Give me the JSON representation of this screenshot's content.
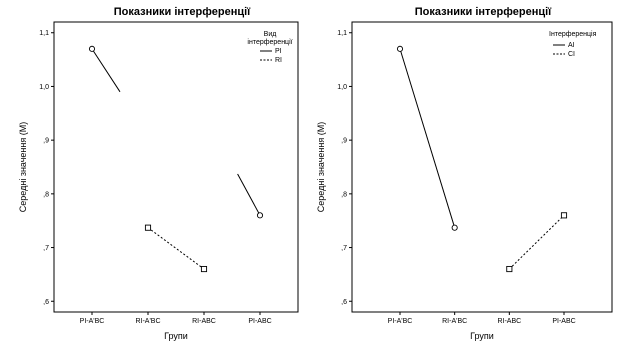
{
  "chart_data": [
    {
      "type": "line",
      "title": "Показники інтерференції",
      "xlabel": "Групи",
      "ylabel": "Середні значення (М)",
      "categories": [
        "PI-A'BC",
        "RI-A'BC",
        "RI-ABC",
        "PI-ABC"
      ],
      "ylim": [
        0.58,
        1.12
      ],
      "yticks": [
        ",6",
        ",7",
        ",8",
        ",9",
        "1,0",
        "1,1"
      ],
      "ytick_values": [
        0.6,
        0.7,
        0.8,
        0.9,
        1.0,
        1.1
      ],
      "legend_title": "Вид інтерференції",
      "series": [
        {
          "name": "PI",
          "style": "solid",
          "marker": "circle",
          "segments": [
            {
              "points": [
                [
                  0,
                  1.07
                ],
                [
                  0.5,
                  0.99
                ]
              ]
            },
            {
              "points": [
                [
                  2.6,
                  0.837
                ],
                [
                  3,
                  0.76
                ]
              ]
            }
          ]
        },
        {
          "name": "RI",
          "style": "dashed",
          "marker": "square",
          "segments": [
            {
              "points": [
                [
                  1,
                  0.737
                ],
                [
                  2,
                  0.66
                ]
              ]
            }
          ]
        }
      ]
    },
    {
      "type": "line",
      "title": "Показники інтерференції",
      "xlabel": "Групи",
      "ylabel": "Середні значення (М)",
      "categories": [
        "PI-A'BC",
        "RI-A'BC",
        "RI-ABC",
        "PI-ABC"
      ],
      "ylim": [
        0.58,
        1.12
      ],
      "yticks": [
        ",6",
        ",7",
        ",8",
        ",9",
        "1,0",
        "1,1"
      ],
      "ytick_values": [
        0.6,
        0.7,
        0.8,
        0.9,
        1.0,
        1.1
      ],
      "legend_title": "Інтерференція",
      "series": [
        {
          "name": "AI",
          "style": "solid",
          "marker": "circle",
          "segments": [
            {
              "points": [
                [
                  0,
                  1.07
                ],
                [
                  1,
                  0.737
                ]
              ]
            }
          ]
        },
        {
          "name": "CI",
          "style": "dashed",
          "marker": "square",
          "segments": [
            {
              "points": [
                [
                  2,
                  0.66
                ],
                [
                  3,
                  0.76
                ]
              ]
            }
          ]
        }
      ]
    }
  ]
}
